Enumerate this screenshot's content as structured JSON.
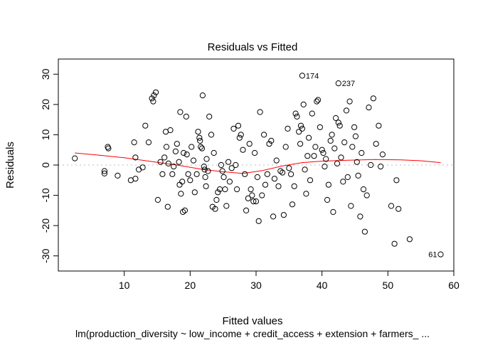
{
  "chart_data": {
    "type": "scatter",
    "title": "Residuals vs Fitted",
    "xlabel": "Fitted values",
    "ylabel": "Residuals",
    "subtitle": "lm(production_diversity ~ low_income + credit_access + extension + farmers_ ...",
    "xlim": [
      0,
      60
    ],
    "ylim": [
      -35,
      35
    ],
    "xticks": [
      10,
      20,
      30,
      40,
      50,
      60
    ],
    "yticks": [
      -30,
      -20,
      -10,
      0,
      10,
      20,
      30
    ],
    "xtick_labels": [
      "10",
      "20",
      "30",
      "40",
      "50",
      "60"
    ],
    "ytick_labels": [
      "-30",
      "-20",
      "-10",
      "0",
      "10",
      "20",
      "30"
    ],
    "grid": false,
    "reference_line_y": 0,
    "colors": {
      "points": "#000000",
      "smooth": "#ff0000",
      "reference": "#bebebe"
    },
    "labeled_points": [
      {
        "label": "174",
        "x": 37,
        "y": 29.5
      },
      {
        "label": "237",
        "x": 42.5,
        "y": 27
      },
      {
        "label": "61",
        "x": 58,
        "y": -29.5
      }
    ],
    "smooth_line": [
      [
        2.5,
        4
      ],
      [
        6,
        3.3
      ],
      [
        10,
        2.4
      ],
      [
        14,
        1.2
      ],
      [
        18,
        0
      ],
      [
        22,
        -1.5
      ],
      [
        25,
        -2.2
      ],
      [
        28,
        -2.8
      ],
      [
        31,
        -1.8
      ],
      [
        34,
        -0.3
      ],
      [
        37,
        0.8
      ],
      [
        40,
        1.3
      ],
      [
        44,
        1.6
      ],
      [
        48,
        1.8
      ],
      [
        52,
        1.7
      ],
      [
        55,
        1.4
      ],
      [
        58,
        0.8
      ]
    ],
    "points": [
      [
        2.5,
        2.2
      ],
      [
        7,
        -2
      ],
      [
        7,
        -2.8
      ],
      [
        7.5,
        6
      ],
      [
        7.6,
        5.5
      ],
      [
        9,
        -3.5
      ],
      [
        11,
        -5
      ],
      [
        11.5,
        7.5
      ],
      [
        11.7,
        2.5
      ],
      [
        11.7,
        -4.5
      ],
      [
        12.2,
        -1.5
      ],
      [
        12.8,
        -0.8
      ],
      [
        13.2,
        13
      ],
      [
        13.7,
        7.5
      ],
      [
        14.2,
        22
      ],
      [
        14.4,
        21
      ],
      [
        14.5,
        23
      ],
      [
        14.8,
        24
      ],
      [
        15.1,
        -11.5
      ],
      [
        15.5,
        1
      ],
      [
        15.8,
        -3
      ],
      [
        16.1,
        2.5
      ],
      [
        16.3,
        11
      ],
      [
        16.4,
        6
      ],
      [
        16.7,
        0.5
      ],
      [
        16.6,
        -13.8
      ],
      [
        17,
        11.5
      ],
      [
        17.3,
        -3
      ],
      [
        17.5,
        -0.5
      ],
      [
        17.8,
        4.5
      ],
      [
        18,
        7
      ],
      [
        18.3,
        1
      ],
      [
        18.4,
        -6.5
      ],
      [
        18.8,
        -5.5
      ],
      [
        19,
        4
      ],
      [
        18.5,
        17.5
      ],
      [
        18.6,
        -9.5
      ],
      [
        18.9,
        -15.5
      ],
      [
        19.2,
        -15
      ],
      [
        19.4,
        16
      ],
      [
        19.5,
        3.5
      ],
      [
        19.7,
        -3
      ],
      [
        20,
        -5
      ],
      [
        20.2,
        6
      ],
      [
        20.5,
        1.5
      ],
      [
        20.7,
        -9
      ],
      [
        21,
        -3
      ],
      [
        21.2,
        11
      ],
      [
        21.4,
        9
      ],
      [
        21.5,
        8
      ],
      [
        21.6,
        6
      ],
      [
        21.8,
        5.5
      ],
      [
        21.9,
        23
      ],
      [
        22.1,
        -0.5
      ],
      [
        22.2,
        -1.5
      ],
      [
        22.3,
        -4
      ],
      [
        22.4,
        -7
      ],
      [
        22.5,
        2
      ],
      [
        22.7,
        -2
      ],
      [
        22.9,
        16
      ],
      [
        23.2,
        10
      ],
      [
        23.4,
        -13.8
      ],
      [
        23.6,
        4
      ],
      [
        23.8,
        -14.5
      ],
      [
        24,
        -11.5
      ],
      [
        24.2,
        -9
      ],
      [
        24.5,
        -8
      ],
      [
        24.7,
        0
      ],
      [
        24.9,
        -2
      ],
      [
        25.1,
        -4
      ],
      [
        25.3,
        -8
      ],
      [
        25.5,
        -13.5
      ],
      [
        25.8,
        1
      ],
      [
        26,
        -5.5
      ],
      [
        26.3,
        -1
      ],
      [
        26.6,
        12
      ],
      [
        26.9,
        0
      ],
      [
        27.1,
        -8
      ],
      [
        27.3,
        13
      ],
      [
        27.5,
        9
      ],
      [
        27.7,
        10
      ],
      [
        28,
        5
      ],
      [
        28.3,
        -3
      ],
      [
        28.5,
        -15
      ],
      [
        28.8,
        -11
      ],
      [
        29,
        7
      ],
      [
        29.2,
        -8
      ],
      [
        29.4,
        -10
      ],
      [
        29.6,
        -12
      ],
      [
        29.8,
        4
      ],
      [
        30,
        -12
      ],
      [
        30.2,
        -4
      ],
      [
        30.4,
        -18.5
      ],
      [
        30.6,
        17.5
      ],
      [
        30.9,
        -10
      ],
      [
        31.2,
        10
      ],
      [
        31.4,
        -6.5
      ],
      [
        31.7,
        -3
      ],
      [
        32,
        7
      ],
      [
        32.3,
        8
      ],
      [
        32.6,
        -17
      ],
      [
        32.8,
        -4.5
      ],
      [
        33.1,
        1.5
      ],
      [
        33.4,
        -7
      ],
      [
        33.7,
        -2
      ],
      [
        34,
        -2.5
      ],
      [
        34.2,
        -16.5
      ],
      [
        34.5,
        6
      ],
      [
        34.8,
        12
      ],
      [
        35,
        -1
      ],
      [
        35.3,
        -3
      ],
      [
        35.5,
        -13
      ],
      [
        35.8,
        -7
      ],
      [
        36,
        17
      ],
      [
        36.2,
        16
      ],
      [
        36.5,
        11
      ],
      [
        36.7,
        7
      ],
      [
        36.8,
        13
      ],
      [
        37,
        12
      ],
      [
        37.2,
        20
      ],
      [
        37.4,
        -1.5
      ],
      [
        37.6,
        -9.5
      ],
      [
        37.8,
        3
      ],
      [
        38,
        9
      ],
      [
        38.2,
        -5
      ],
      [
        38.5,
        17
      ],
      [
        38.8,
        3
      ],
      [
        39,
        6
      ],
      [
        39.2,
        21
      ],
      [
        39.4,
        21.5
      ],
      [
        39.7,
        12.5
      ],
      [
        40,
        5
      ],
      [
        40.2,
        4
      ],
      [
        40.4,
        -0.5
      ],
      [
        40.6,
        2
      ],
      [
        40.8,
        -11.5
      ],
      [
        41,
        -6.5
      ],
      [
        41.3,
        8
      ],
      [
        41.5,
        10
      ],
      [
        41.7,
        -15.5
      ],
      [
        41.9,
        5.5
      ],
      [
        42.1,
        15.5
      ],
      [
        42.3,
        0.5
      ],
      [
        42.5,
        14
      ],
      [
        42.7,
        13
      ],
      [
        42.9,
        2.5
      ],
      [
        43.2,
        -5.5
      ],
      [
        43.4,
        7.5
      ],
      [
        43.7,
        18
      ],
      [
        43.9,
        -4
      ],
      [
        44.2,
        21
      ],
      [
        44.4,
        -13.5
      ],
      [
        44.6,
        6
      ],
      [
        44.9,
        12.5
      ],
      [
        45.1,
        9.5
      ],
      [
        45.3,
        1
      ],
      [
        45.5,
        -3.5
      ],
      [
        45.8,
        -17
      ],
      [
        46,
        4
      ],
      [
        46.3,
        -8
      ],
      [
        46.5,
        -22
      ],
      [
        46.8,
        -10
      ],
      [
        47.1,
        19
      ],
      [
        47.4,
        0
      ],
      [
        47.8,
        22
      ],
      [
        48.2,
        7
      ],
      [
        48.6,
        13
      ],
      [
        48.9,
        -0.5
      ],
      [
        49.2,
        3.5
      ],
      [
        50.5,
        -13.5
      ],
      [
        51,
        -26
      ],
      [
        51.3,
        -5
      ],
      [
        51.6,
        -14.5
      ],
      [
        53.3,
        -24.5
      ]
    ]
  }
}
